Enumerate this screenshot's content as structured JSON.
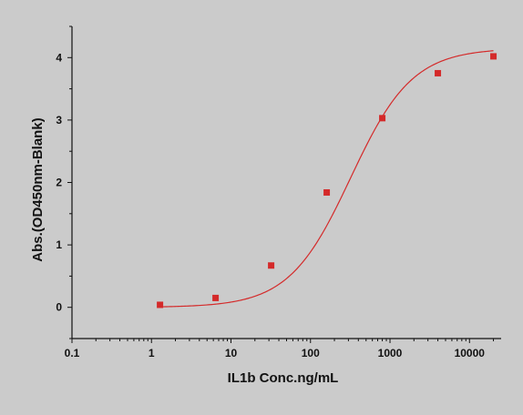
{
  "chart_data": {
    "type": "scatter",
    "title": "",
    "xlabel": "IL1b Conc.ng/mL",
    "ylabel": "Abs.(OD450nm-Blank)",
    "x_scale": "log",
    "xlim": [
      0.1,
      25000
    ],
    "ylim": [
      -0.5,
      4.5
    ],
    "x_ticks": [
      0.1,
      1,
      10,
      100,
      1000,
      10000
    ],
    "x_tick_labels": [
      "0.1",
      "1",
      "10",
      "100",
      "1000",
      "10000"
    ],
    "y_ticks": [
      0,
      1,
      2,
      3,
      4
    ],
    "y_tick_labels": [
      "0",
      "1",
      "2",
      "3",
      "4"
    ],
    "grid": false,
    "legend": "none",
    "series": [
      {
        "x": [
          1.28,
          6.4,
          32,
          160,
          800,
          4000,
          20000
        ],
        "y": [
          0.04,
          0.15,
          0.67,
          1.84,
          3.03,
          3.75,
          4.02
        ],
        "color": "#d42a2a",
        "marker": "square",
        "fit": "4-parameter logistic"
      }
    ]
  }
}
